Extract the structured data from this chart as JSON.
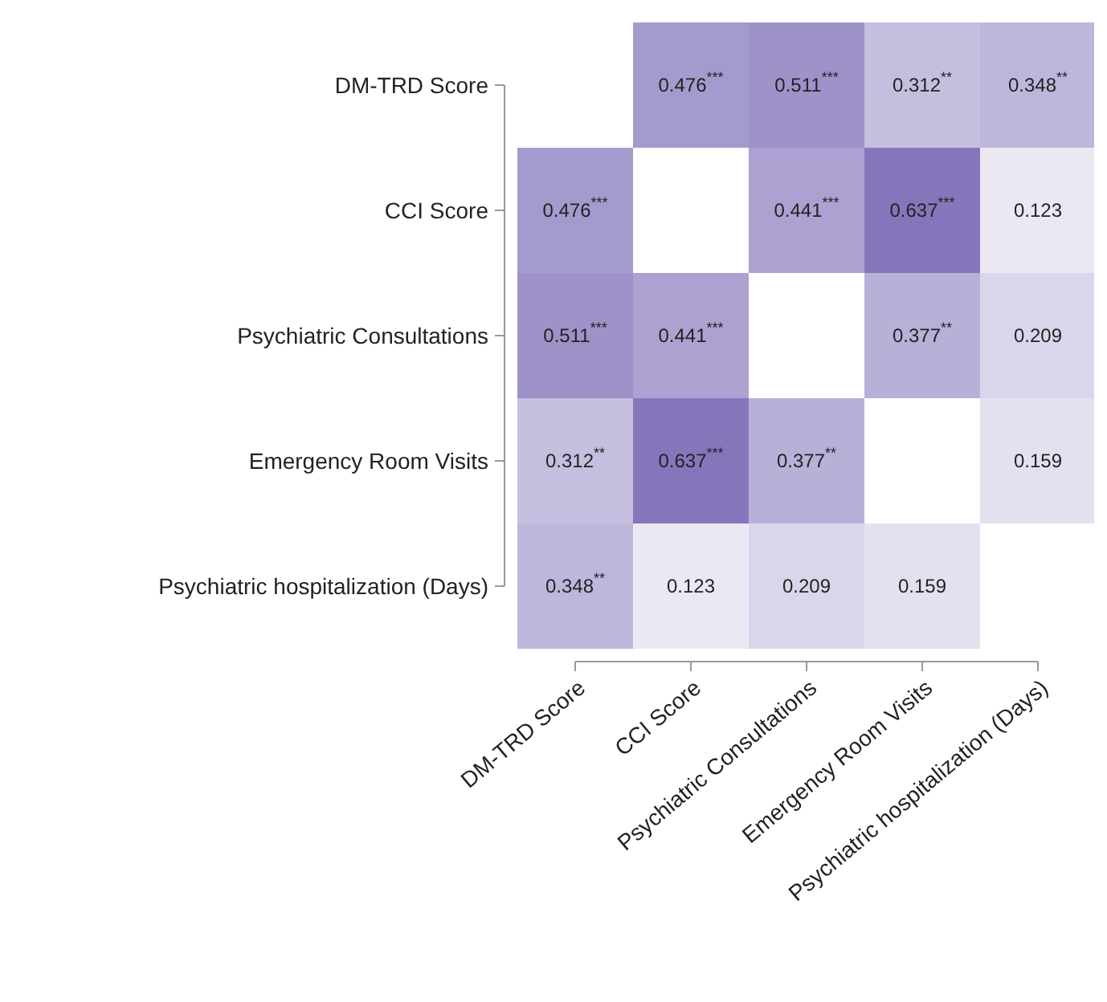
{
  "chart_data": {
    "type": "heatmap",
    "categories": [
      "DM-TRD Score",
      "CCI Score",
      "Psychiatric Consultations",
      "Emergency Room Visits",
      "Psychiatric hospitalization (Days)"
    ],
    "y_categories": [
      "DM-TRD Score",
      "CCI Score",
      "Psychiatric Consultations",
      "Emergency Room Visits",
      "Psychiatric hospitalization (Days)"
    ],
    "cells": [
      [
        null,
        0.476,
        0.511,
        0.312,
        0.348
      ],
      [
        0.476,
        null,
        0.441,
        0.637,
        0.123
      ],
      [
        0.511,
        0.441,
        null,
        0.377,
        0.209
      ],
      [
        0.312,
        0.637,
        0.377,
        null,
        0.159
      ],
      [
        0.348,
        0.123,
        0.209,
        0.159,
        null
      ]
    ],
    "cell_labels": [
      [
        null,
        "0.476$^{***}$",
        "0.511$^{***}$",
        "0.312$^{**}$",
        "0.348$^{**}$"
      ],
      [
        "0.476$^{***}$",
        null,
        "0.441$^{***}$",
        "0.637$^{***}$",
        "0.123"
      ],
      [
        "0.511$^{***}$",
        "0.441$^{***}$",
        null,
        "0.377$^{**}$",
        "0.209"
      ],
      [
        "0.312$^{**}$",
        "0.637$^{***}$",
        "0.377$^{**}$",
        null,
        "0.159"
      ],
      [
        "0.348$^{**}$",
        "0.123",
        "0.209",
        "0.159",
        null
      ]
    ]
  }
}
